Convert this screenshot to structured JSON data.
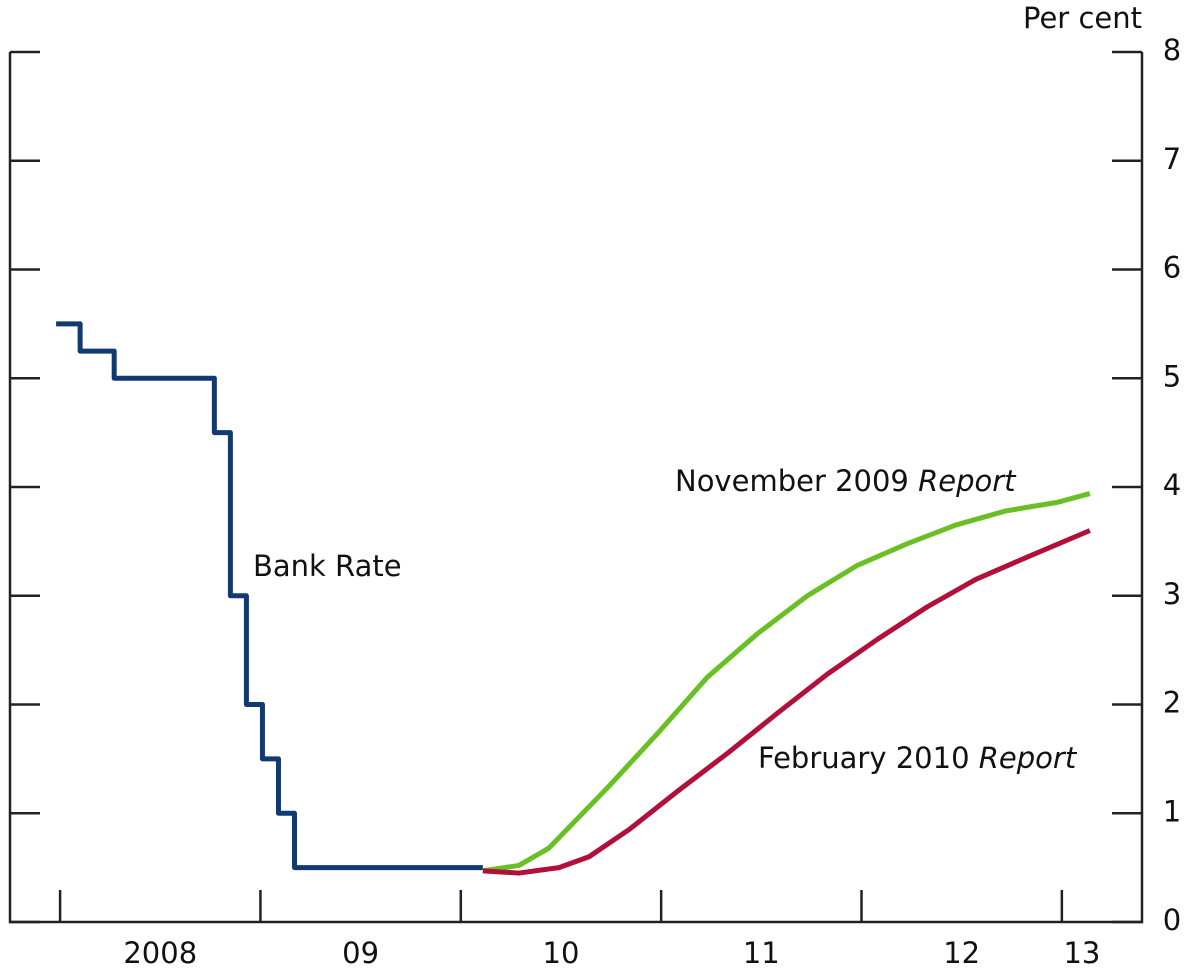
{
  "chart_data": {
    "type": "line",
    "y_axis_label": "Per cent",
    "xlim": [
      2007.75,
      2013.4
    ],
    "xticks": [
      2008,
      2009,
      2010,
      2011,
      2012,
      2013
    ],
    "xtick_labels": [
      {
        "value": 2008.5,
        "label": "2008"
      },
      {
        "value": 2009.5,
        "label": "09"
      },
      {
        "value": 2010.5,
        "label": "10"
      },
      {
        "value": 2011.5,
        "label": "11"
      },
      {
        "value": 2012.5,
        "label": "12"
      },
      {
        "value": 2013.1,
        "label": "13"
      }
    ],
    "ylim": [
      0,
      8
    ],
    "yticks": [
      0,
      1,
      2,
      3,
      4,
      5,
      6,
      7,
      8
    ],
    "series": [
      {
        "name": "Bank Rate",
        "color": "#123a72",
        "step": true,
        "x": [
          2007.98,
          2008.1,
          2008.27,
          2008.77,
          2008.85,
          2008.93,
          2009.01,
          2009.09,
          2009.17,
          2010.11
        ],
        "values": [
          5.5,
          5.25,
          5.0,
          4.5,
          3.0,
          2.0,
          1.5,
          1.0,
          0.5,
          0.5
        ],
        "label_parts": [
          {
            "text": "Bank Rate"
          }
        ]
      },
      {
        "name": "November 2009 Report",
        "color": "#6abf24",
        "x": [
          2010.11,
          2010.29,
          2010.44,
          2010.74,
          2010.99,
          2011.23,
          2011.48,
          2011.73,
          2011.98,
          2012.23,
          2012.47,
          2012.72,
          2012.98,
          2013.14
        ],
        "values": [
          0.47,
          0.52,
          0.68,
          1.25,
          1.75,
          2.25,
          2.65,
          3.0,
          3.28,
          3.48,
          3.65,
          3.78,
          3.86,
          3.94
        ],
        "label_parts": [
          {
            "text": "November 2009 "
          },
          {
            "text": "Report",
            "italic": true
          }
        ]
      },
      {
        "name": "February 2010 Report",
        "color": "#b0103a",
        "x": [
          2010.11,
          2010.29,
          2010.49,
          2010.64,
          2010.84,
          2011.08,
          2011.33,
          2011.58,
          2011.83,
          2012.08,
          2012.33,
          2012.57,
          2012.82,
          2013.14
        ],
        "values": [
          0.47,
          0.45,
          0.5,
          0.6,
          0.85,
          1.2,
          1.55,
          1.92,
          2.28,
          2.6,
          2.9,
          3.15,
          3.35,
          3.6
        ],
        "label_parts": [
          {
            "text": "February 2010 "
          },
          {
            "text": "Report",
            "italic": true
          }
        ]
      }
    ]
  }
}
